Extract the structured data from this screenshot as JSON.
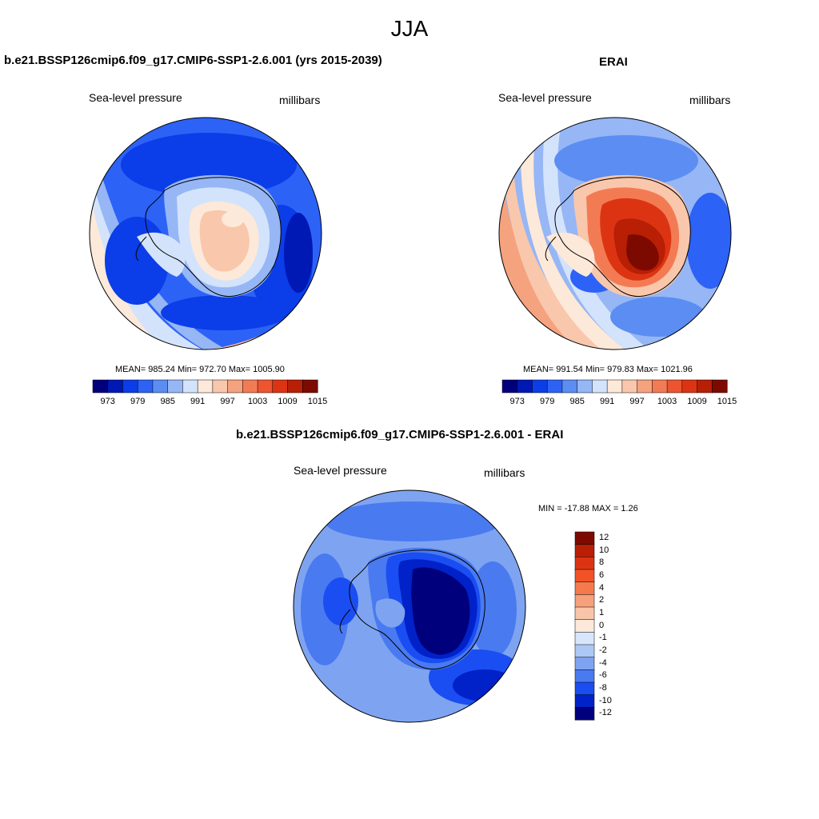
{
  "figure": {
    "title": "JJA"
  },
  "panels": {
    "model": {
      "title": "b.e21.BSSP126cmip6.f09_g17.CMIP6-SSP1-2.6.001 (yrs 2015-2039)",
      "left_label": "Sea-level pressure",
      "right_label": "millibars",
      "stats": "MEAN= 985.24  Min= 972.70  Max= 1005.90",
      "colorbar": {
        "ticks": [
          "973",
          "979",
          "985",
          "991",
          "997",
          "1003",
          "1009",
          "1015"
        ],
        "colors": [
          "#00007d",
          "#0018b4",
          "#0b3de8",
          "#2d62f6",
          "#5b8df2",
          "#96b6f5",
          "#d3e3fb",
          "#fde9d9",
          "#f9c7ac",
          "#f5a27f",
          "#f37b54",
          "#ed5530",
          "#dc3413",
          "#b81f05",
          "#7d0a00"
        ]
      }
    },
    "obs": {
      "title": "ERAI",
      "left_label": "Sea-level pressure",
      "right_label": "millibars",
      "stats": "MEAN= 991.54  Min= 979.83  Max= 1021.96",
      "colorbar": {
        "ticks": [
          "973",
          "979",
          "985",
          "991",
          "997",
          "1003",
          "1009",
          "1015"
        ],
        "colors": [
          "#00007d",
          "#0018b4",
          "#0b3de8",
          "#2d62f6",
          "#5b8df2",
          "#96b6f5",
          "#d3e3fb",
          "#fde9d9",
          "#f9c7ac",
          "#f5a27f",
          "#f37b54",
          "#ed5530",
          "#dc3413",
          "#b81f05",
          "#7d0a00"
        ]
      }
    },
    "diff": {
      "title": "b.e21.BSSP126cmip6.f09_g17.CMIP6-SSP1-2.6.001 - ERAI",
      "left_label": "Sea-level pressure",
      "right_label": "millibars",
      "stats": "MIN = -17.88 MAX =   1.26",
      "colorbar": {
        "ticks": [
          "12",
          "10",
          "8",
          "6",
          "4",
          "2",
          "1",
          "0",
          "-1",
          "-2",
          "-4",
          "-6",
          "-8",
          "-10",
          "-12"
        ],
        "colors": [
          "#7d0a00",
          "#b81f05",
          "#dc3413",
          "#f25326",
          "#f47a4d",
          "#f6a07c",
          "#f9c5a8",
          "#fde9d9",
          "#d8e6fb",
          "#aec8f6",
          "#7ea4f1",
          "#4a7af0",
          "#1a4ef2",
          "#0022c8",
          "#00007d"
        ]
      }
    }
  },
  "colors": {
    "land_outline": "#000000",
    "background": "#ffffff"
  }
}
